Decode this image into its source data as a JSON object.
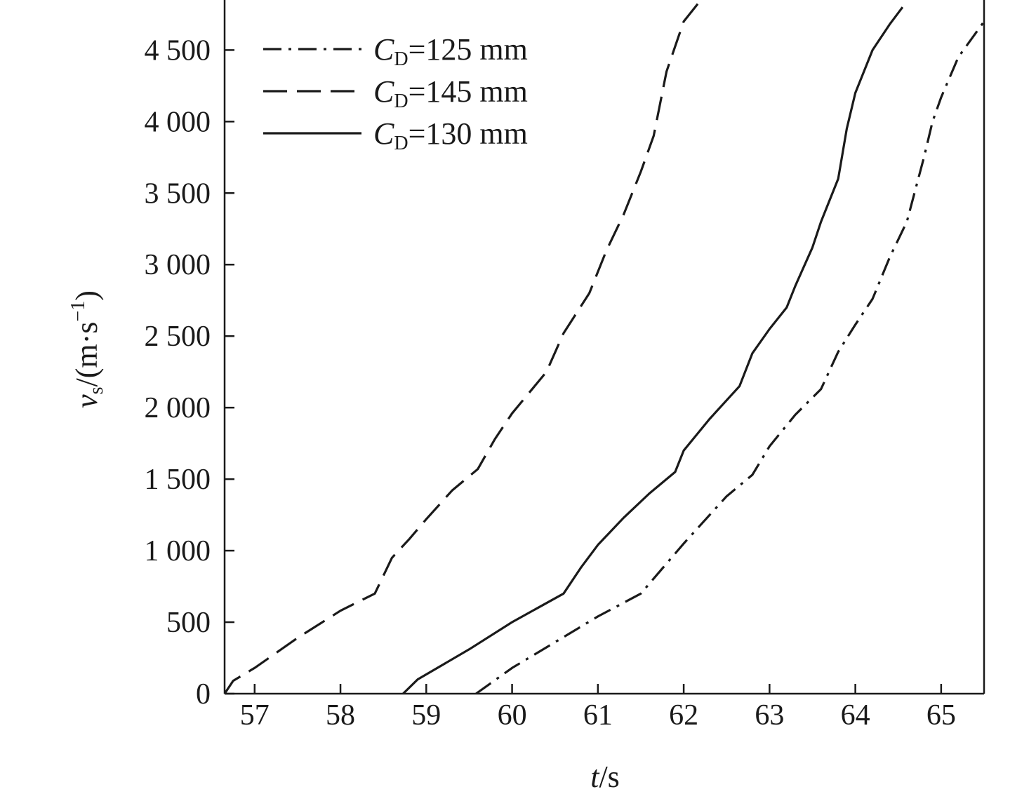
{
  "chart_data": {
    "type": "line",
    "xlabel_italic": "t",
    "xlabel_rest": "/s",
    "ylabel_italic": "v",
    "ylabel_sub": "s",
    "ylabel_rest": "/(m·s",
    "ylabel_sup": "−1",
    "ylabel_close": ")",
    "xlim": [
      56.65,
      65.5
    ],
    "ylim": [
      0,
      4850
    ],
    "x_ticks": [
      57,
      58,
      59,
      60,
      61,
      62,
      63,
      64,
      65
    ],
    "x_tick_labels": [
      "57",
      "58",
      "59",
      "60",
      "61",
      "62",
      "63",
      "64",
      "65"
    ],
    "y_ticks": [
      0,
      500,
      1000,
      1500,
      2000,
      2500,
      3000,
      3500,
      4000,
      4500
    ],
    "y_tick_labels": [
      "0",
      "500",
      "1 000",
      "1 500",
      "2 000",
      "2 500",
      "3 000",
      "3 500",
      "4 000",
      "4 500"
    ],
    "legend_position": "top-left",
    "series": [
      {
        "name_italic": "C",
        "name_sub": "D",
        "name_rest": "=125 mm",
        "style": "dashdot",
        "x": [
          59.58,
          60.0,
          60.5,
          61.0,
          61.5,
          62.0,
          62.5,
          62.8,
          63.0,
          63.3,
          63.6,
          63.8,
          64.0,
          64.2,
          64.4,
          64.6,
          64.8,
          64.9,
          65.0,
          65.2,
          65.5
        ],
        "y": [
          0,
          180,
          360,
          540,
          700,
          1050,
          1380,
          1530,
          1730,
          1950,
          2130,
          2390,
          2580,
          2760,
          3050,
          3300,
          3750,
          4000,
          4170,
          4450,
          4700
        ]
      },
      {
        "name_italic": "C",
        "name_sub": "D",
        "name_rest": "=145 mm",
        "style": "dashed",
        "x": [
          56.65,
          56.75,
          57.0,
          57.5,
          58.0,
          58.4,
          58.6,
          58.8,
          59.0,
          59.3,
          59.6,
          59.8,
          60.0,
          60.4,
          60.6,
          60.9,
          61.1,
          61.3,
          61.5,
          61.65,
          61.8,
          62.0,
          62.2
        ],
        "y": [
          0,
          90,
          180,
          390,
          580,
          700,
          950,
          1080,
          1220,
          1420,
          1570,
          1780,
          1960,
          2250,
          2520,
          2800,
          3100,
          3350,
          3650,
          3900,
          4350,
          4700,
          4850
        ]
      },
      {
        "name_italic": "C",
        "name_sub": "D",
        "name_rest": "=130 mm",
        "style": "solid",
        "x": [
          58.73,
          58.9,
          59.5,
          60.0,
          60.6,
          60.8,
          61.0,
          61.3,
          61.6,
          61.9,
          62.0,
          62.3,
          62.65,
          62.8,
          63.0,
          63.2,
          63.3,
          63.5,
          63.6,
          63.8,
          63.9,
          64.0,
          64.2,
          64.4,
          64.55
        ],
        "y": [
          0,
          100,
          310,
          500,
          700,
          880,
          1040,
          1230,
          1400,
          1550,
          1700,
          1920,
          2150,
          2380,
          2550,
          2700,
          2850,
          3120,
          3300,
          3600,
          3950,
          4200,
          4500,
          4680,
          4800
        ]
      }
    ]
  }
}
